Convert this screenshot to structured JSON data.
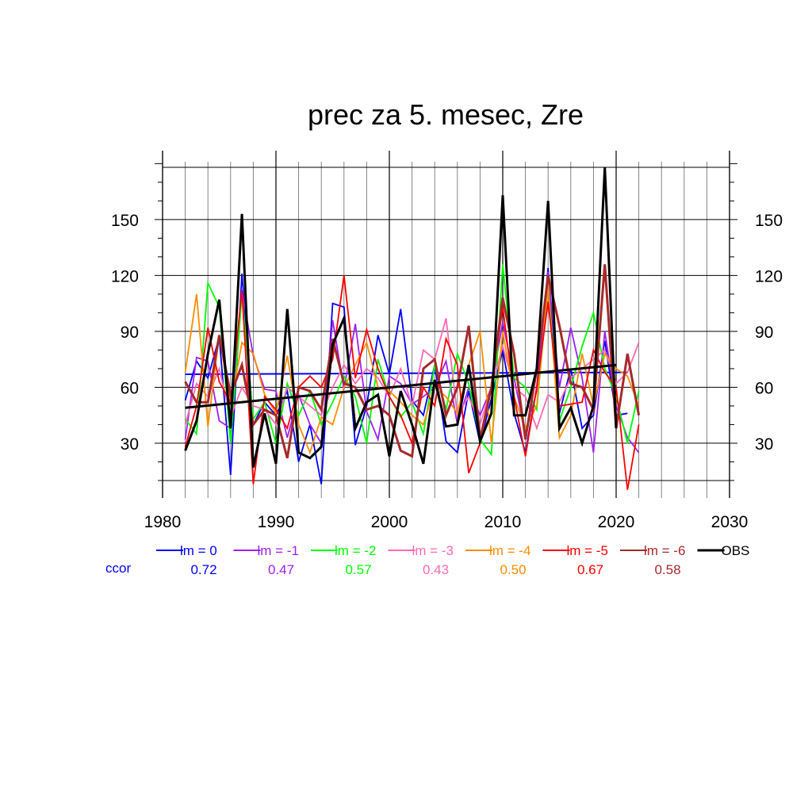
{
  "chart_data": {
    "type": "line",
    "title": "prec za 5. mesec, Zre",
    "xlabel": "",
    "ylabel": "",
    "xlim": [
      1980,
      2030
    ],
    "ylim": [
      7,
      181
    ],
    "x_ticks": [
      1980,
      1990,
      2000,
      2010,
      2020,
      2030
    ],
    "y_ticks": [
      30,
      60,
      90,
      120,
      150
    ],
    "grid": true,
    "ccor_label": "ccor",
    "series": [
      {
        "name": "lm = 0",
        "color": "#0000ff",
        "ccor": "0.72",
        "x": [
          1982,
          1983,
          1984,
          1985,
          1986,
          1987,
          1988,
          1989,
          1990,
          1991,
          1992,
          1993,
          1994,
          1995,
          1996,
          1997,
          1998,
          1999,
          2000,
          2001,
          2002,
          2003,
          2004,
          2005,
          2006,
          2007,
          2008,
          2009,
          2010,
          2011,
          2012,
          2013,
          2014,
          2015,
          2016,
          2017,
          2018,
          2019,
          2020,
          2021
        ],
        "y": [
          53,
          74,
          65,
          87,
          13,
          121,
          40,
          52,
          45,
          58,
          20,
          40,
          8,
          105,
          103,
          29,
          50,
          88,
          67,
          102,
          53,
          45,
          72,
          31,
          25,
          58,
          30,
          54,
          80,
          46,
          25,
          60,
          124,
          46,
          70,
          38,
          45,
          85,
          45,
          46
        ],
        "trend": [
          67,
          68
        ]
      },
      {
        "name": "lm = -1",
        "color": "#a020f0",
        "ccor": "0.47",
        "x": [
          1982,
          1983,
          1984,
          1985,
          1986,
          1987,
          1988,
          1989,
          1990,
          1991,
          1992,
          1993,
          1994,
          1995,
          1996,
          1997,
          1998,
          1999,
          2000,
          2001,
          2002,
          2003,
          2004,
          2005,
          2006,
          2007,
          2008,
          2009,
          2010,
          2011,
          2012,
          2013,
          2014,
          2015,
          2016,
          2017,
          2018,
          2019,
          2020,
          2021,
          2022
        ],
        "y": [
          32,
          76,
          74,
          42,
          38,
          112,
          77,
          59,
          58,
          33,
          56,
          40,
          30,
          96,
          59,
          94,
          47,
          32,
          66,
          62,
          51,
          55,
          60,
          74,
          40,
          60,
          45,
          60,
          95,
          65,
          35,
          58,
          122,
          60,
          92,
          65,
          25,
          90,
          50,
          33,
          25
        ]
      },
      {
        "name": "lm = -2",
        "color": "#00ff00",
        "ccor": "0.57",
        "x": [
          1982,
          1983,
          1984,
          1985,
          1986,
          1987,
          1988,
          1989,
          1990,
          1991,
          1992,
          1993,
          1994,
          1995,
          1996,
          1997,
          1998,
          1999,
          2000,
          2001,
          2002,
          2003,
          2004,
          2005,
          2006,
          2007,
          2008,
          2009,
          2010,
          2011,
          2012,
          2013,
          2014,
          2015,
          2016,
          2017,
          2018,
          2019,
          2020,
          2021,
          2022
        ],
        "y": [
          43,
          35,
          116,
          103,
          30,
          110,
          43,
          52,
          30,
          62,
          45,
          58,
          40,
          52,
          66,
          55,
          30,
          75,
          55,
          44,
          52,
          35,
          72,
          48,
          78,
          62,
          32,
          24,
          126,
          65,
          60,
          48,
          115,
          42,
          60,
          82,
          100,
          70,
          55,
          30,
          58
        ]
      },
      {
        "name": "lm = -3",
        "color": "#ff69b4",
        "ccor": "0.43",
        "x": [
          1982,
          1983,
          1984,
          1985,
          1986,
          1987,
          1988,
          1989,
          1990,
          1991,
          1992,
          1993,
          1994,
          1995,
          1996,
          1997,
          1998,
          1999,
          2000,
          2001,
          2002,
          2003,
          2004,
          2005,
          2006,
          2007,
          2008,
          2009,
          2010,
          2011,
          2012,
          2013,
          2014,
          2015,
          2016,
          2017,
          2018,
          2019,
          2020,
          2021,
          2022
        ],
        "y": [
          40,
          62,
          55,
          70,
          44,
          60,
          50,
          48,
          40,
          60,
          55,
          50,
          45,
          60,
          72,
          62,
          70,
          65,
          55,
          70,
          50,
          80,
          75,
          97,
          45,
          55,
          40,
          60,
          82,
          60,
          55,
          38,
          56,
          52,
          65,
          70,
          75,
          80,
          62,
          68,
          84
        ]
      },
      {
        "name": "lm = -4",
        "color": "#ff8c00",
        "ccor": "0.50",
        "x": [
          1982,
          1983,
          1984,
          1985,
          1986,
          1987,
          1988,
          1989,
          1990,
          1991,
          1992,
          1993,
          1994,
          1995,
          1996,
          1997,
          1998,
          1999,
          2000,
          2001,
          2002,
          2003,
          2004,
          2005,
          2006,
          2007,
          2008,
          2009,
          2010,
          2011,
          2012,
          2013,
          2014,
          2015,
          2016,
          2017,
          2018,
          2019,
          2020,
          2021,
          2022
        ],
        "y": [
          68,
          110,
          39,
          88,
          50,
          84,
          78,
          56,
          46,
          77,
          40,
          25,
          44,
          40,
          60,
          72,
          84,
          60,
          58,
          52,
          45,
          40,
          60,
          55,
          46,
          72,
          90,
          30,
          90,
          55,
          38,
          50,
          115,
          33,
          45,
          78,
          50,
          78,
          70,
          66,
          50
        ]
      },
      {
        "name": "lm = -5",
        "color": "#ff0000",
        "ccor": "0.67",
        "x": [
          1982,
          1983,
          1984,
          1985,
          1986,
          1987,
          1988,
          1989,
          1990,
          1991,
          1992,
          1993,
          1994,
          1995,
          1996,
          1997,
          1998,
          1999,
          2000,
          2001,
          2002,
          2003,
          2004,
          2005,
          2006,
          2007,
          2008,
          2009,
          2010,
          2011,
          2012,
          2013,
          2014,
          2015,
          2016,
          2017,
          2018,
          2019,
          2020,
          2021,
          2022
        ],
        "y": [
          28,
          50,
          92,
          63,
          52,
          112,
          8,
          55,
          48,
          38,
          60,
          66,
          60,
          75,
          120,
          65,
          91,
          70,
          55,
          45,
          30,
          60,
          50,
          86,
          72,
          14,
          30,
          60,
          103,
          55,
          23,
          60,
          106,
          50,
          51,
          52,
          80,
          68,
          60,
          5,
          40
        ]
      },
      {
        "name": "lm = -6",
        "color": "#a52a2a",
        "ccor": "0.58",
        "x": [
          1982,
          1983,
          1984,
          1985,
          1986,
          1987,
          1988,
          1989,
          1990,
          1991,
          1992,
          1993,
          1994,
          1995,
          1996,
          1997,
          1998,
          1999,
          2000,
          2001,
          2002,
          2003,
          2004,
          2005,
          2006,
          2007,
          2008,
          2009,
          2010,
          2011,
          2012,
          2013,
          2014,
          2015,
          2016,
          2017,
          2018,
          2019,
          2020,
          2021,
          2022
        ],
        "y": [
          63,
          52,
          52,
          88,
          56,
          72,
          40,
          48,
          45,
          22,
          60,
          58,
          48,
          86,
          62,
          60,
          48,
          50,
          45,
          26,
          23,
          70,
          75,
          45,
          60,
          93,
          32,
          60,
          108,
          78,
          32,
          70,
          120,
          93,
          62,
          60,
          48,
          126,
          38,
          78,
          45
        ]
      },
      {
        "name": "OBS",
        "color": "#000000",
        "ccor": "",
        "x": [
          1982,
          1983,
          1984,
          1985,
          1986,
          1987,
          1988,
          1989,
          1990,
          1991,
          1992,
          1993,
          1994,
          1995,
          1996,
          1997,
          1998,
          1999,
          2000,
          2001,
          2002,
          2003,
          2004,
          2005,
          2006,
          2007,
          2008,
          2009,
          2010,
          2011,
          2012,
          2013,
          2014,
          2015,
          2016,
          2017,
          2018,
          2019,
          2020
        ],
        "y": [
          26,
          42,
          78,
          107,
          38,
          153,
          17,
          46,
          19,
          102,
          25,
          22,
          28,
          83,
          97,
          38,
          52,
          56,
          23,
          58,
          40,
          19,
          64,
          39,
          40,
          72,
          31,
          46,
          163,
          45,
          45,
          70,
          160,
          38,
          49,
          30,
          50,
          178,
          38
        ],
        "trend": [
          49,
          72
        ]
      }
    ]
  }
}
